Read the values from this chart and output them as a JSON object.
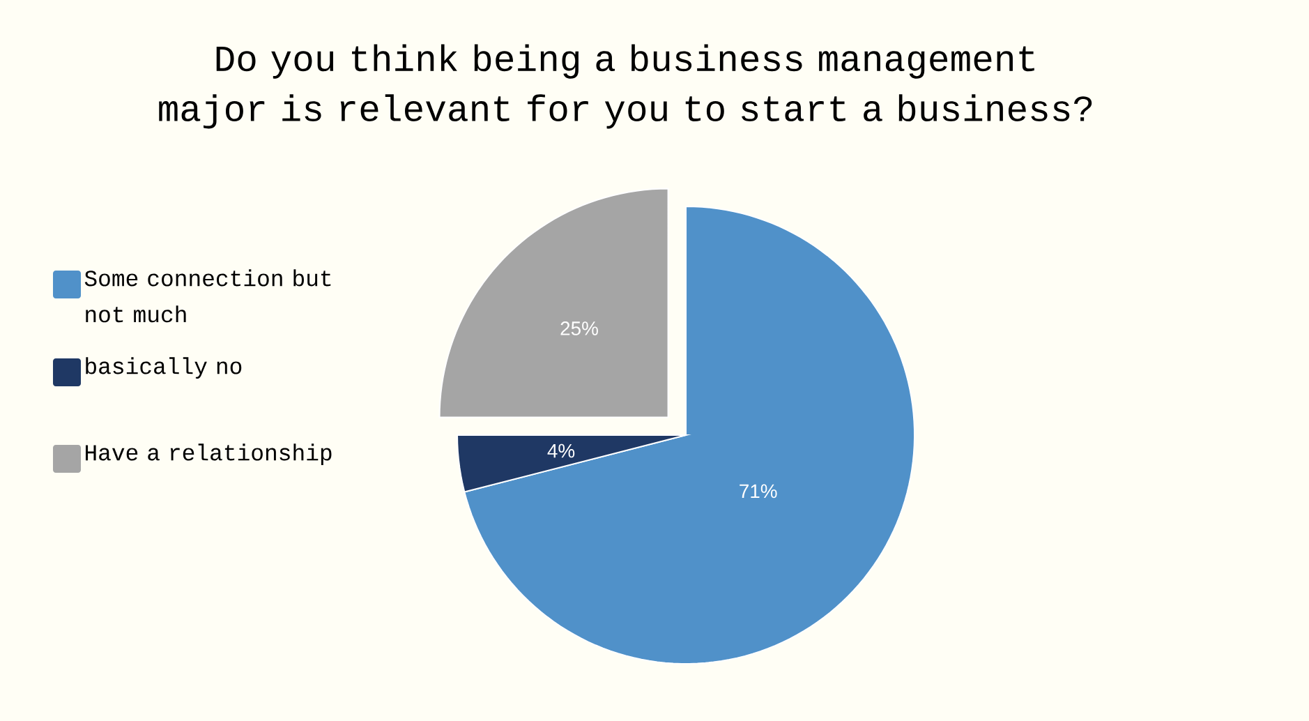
{
  "chart_data": {
    "type": "pie",
    "title": "Do you think being a business management major is relevant for you to start a business?",
    "categories": [
      "Some connection but not much",
      "basically no",
      "Have a relationship"
    ],
    "values": [
      71,
      4,
      25
    ],
    "value_labels": [
      "71%",
      "4%",
      "25%"
    ],
    "colors": [
      "#5091c9",
      "#1f3864",
      "#a5a5a5"
    ],
    "legend": "left"
  }
}
